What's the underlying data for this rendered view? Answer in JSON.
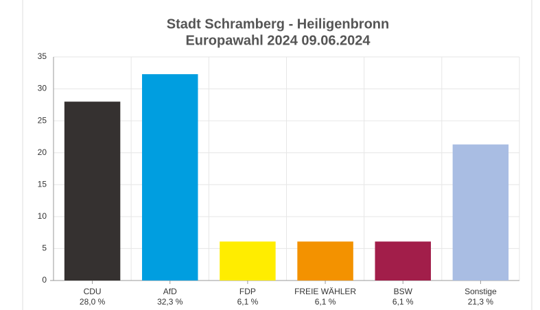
{
  "chart_data": {
    "type": "bar",
    "title": "Stadt Schramberg - Heiligenbronn",
    "subtitle": "Europawahl 2024 09.06.2024",
    "categories": [
      "CDU",
      "AfD",
      "FDP",
      "FREIE WÄHLER",
      "BSW",
      "Sonstige"
    ],
    "values": [
      28.0,
      32.3,
      6.1,
      6.1,
      6.1,
      21.3
    ],
    "value_labels": [
      "28,0 %",
      "32,3 %",
      "6,1 %",
      "6,1 %",
      "6,1 %",
      "21,3 %"
    ],
    "colors": [
      "#353130",
      "#009ee0",
      "#ffed00",
      "#f39200",
      "#a21e4a",
      "#a9bde3"
    ],
    "ylim": [
      0,
      35
    ],
    "yticks": [
      0,
      5,
      10,
      15,
      20,
      25,
      30,
      35
    ],
    "grid": true
  }
}
